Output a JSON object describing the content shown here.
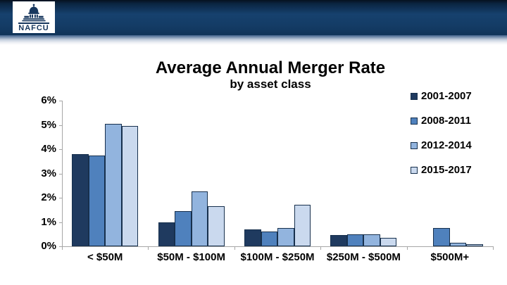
{
  "header": {
    "logo_text": "NAFCU",
    "brand_color": "#17375E"
  },
  "chart_data": {
    "type": "bar",
    "title": "Average Annual Merger Rate",
    "subtitle": "by asset class",
    "categories": [
      "< $50M",
      "$50M - $100M",
      "$100M - $250M",
      "$250M - $500M",
      "$500M+"
    ],
    "series": [
      {
        "name": "2001-2007",
        "color": "#1F3A5F",
        "values": [
          3.8,
          1.0,
          0.7,
          0.45,
          0
        ]
      },
      {
        "name": "2008-2011",
        "color": "#4F81BD",
        "values": [
          3.75,
          1.45,
          0.6,
          0.5,
          0.75
        ]
      },
      {
        "name": "2012-2014",
        "color": "#92B4DE",
        "values": [
          5.05,
          2.25,
          0.75,
          0.5,
          0.15
        ]
      },
      {
        "name": "2015-2017",
        "color": "#CAD9EE",
        "values": [
          4.95,
          1.65,
          1.7,
          0.35,
          0.1
        ]
      }
    ],
    "ylim": [
      0,
      6
    ],
    "ytick_labels": [
      "6%",
      "5%",
      "4%",
      "3%",
      "2%",
      "1%",
      "0%"
    ],
    "ytick_values": [
      6,
      5,
      4,
      3,
      2,
      1,
      0
    ],
    "bar_border_color": "#17304D",
    "axis_color": "#A6A6A6",
    "grid": false,
    "legend_position": "right"
  }
}
